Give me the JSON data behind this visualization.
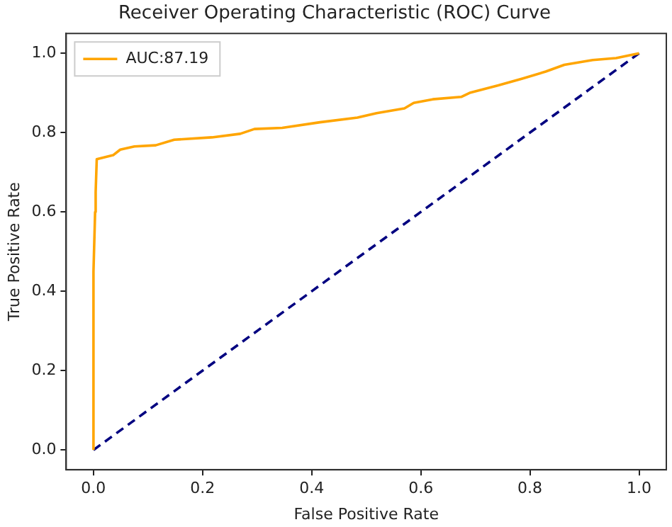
{
  "chart_data": {
    "type": "line",
    "title": "Receiver Operating Characteristic (ROC) Curve",
    "xlabel": "False Positive Rate",
    "ylabel": "True Positive Rate",
    "series": [
      {
        "name": "AUC:87.19",
        "color": "#ffa500",
        "x": [
          0,
          0,
          0.003,
          0.004,
          0.006,
          0.036,
          0.049,
          0.075,
          0.114,
          0.148,
          0.217,
          0.269,
          0.295,
          0.346,
          0.415,
          0.484,
          0.519,
          0.57,
          0.587,
          0.622,
          0.674,
          0.691,
          0.742,
          0.786,
          0.829,
          0.863,
          0.915,
          0.958,
          1.0
        ],
        "values": [
          0,
          0.45,
          0.6,
          0.65,
          0.733,
          0.743,
          0.757,
          0.765,
          0.768,
          0.782,
          0.788,
          0.797,
          0.809,
          0.812,
          0.826,
          0.838,
          0.849,
          0.861,
          0.875,
          0.884,
          0.89,
          0.901,
          0.919,
          0.936,
          0.954,
          0.971,
          0.983,
          0.988,
          1.0
        ]
      },
      {
        "color": "#000080",
        "line_style": "dashed",
        "x": [
          0,
          1
        ],
        "values": [
          0,
          1
        ]
      }
    ],
    "xlim": [
      -0.05,
      1.05
    ],
    "ylim": [
      -0.05,
      1.05
    ],
    "xticks": [
      {
        "value": 0,
        "label": "0.0"
      },
      0.2,
      0.4,
      0.6,
      0.8,
      {
        "value": 1,
        "label": "1.0"
      }
    ],
    "yticks": [
      {
        "value": 0,
        "label": "0.0"
      },
      0.2,
      0.4,
      0.6,
      0.8,
      {
        "value": 1,
        "label": "1.0"
      }
    ],
    "grid": false,
    "legend": "top left",
    "marker": "none"
  }
}
